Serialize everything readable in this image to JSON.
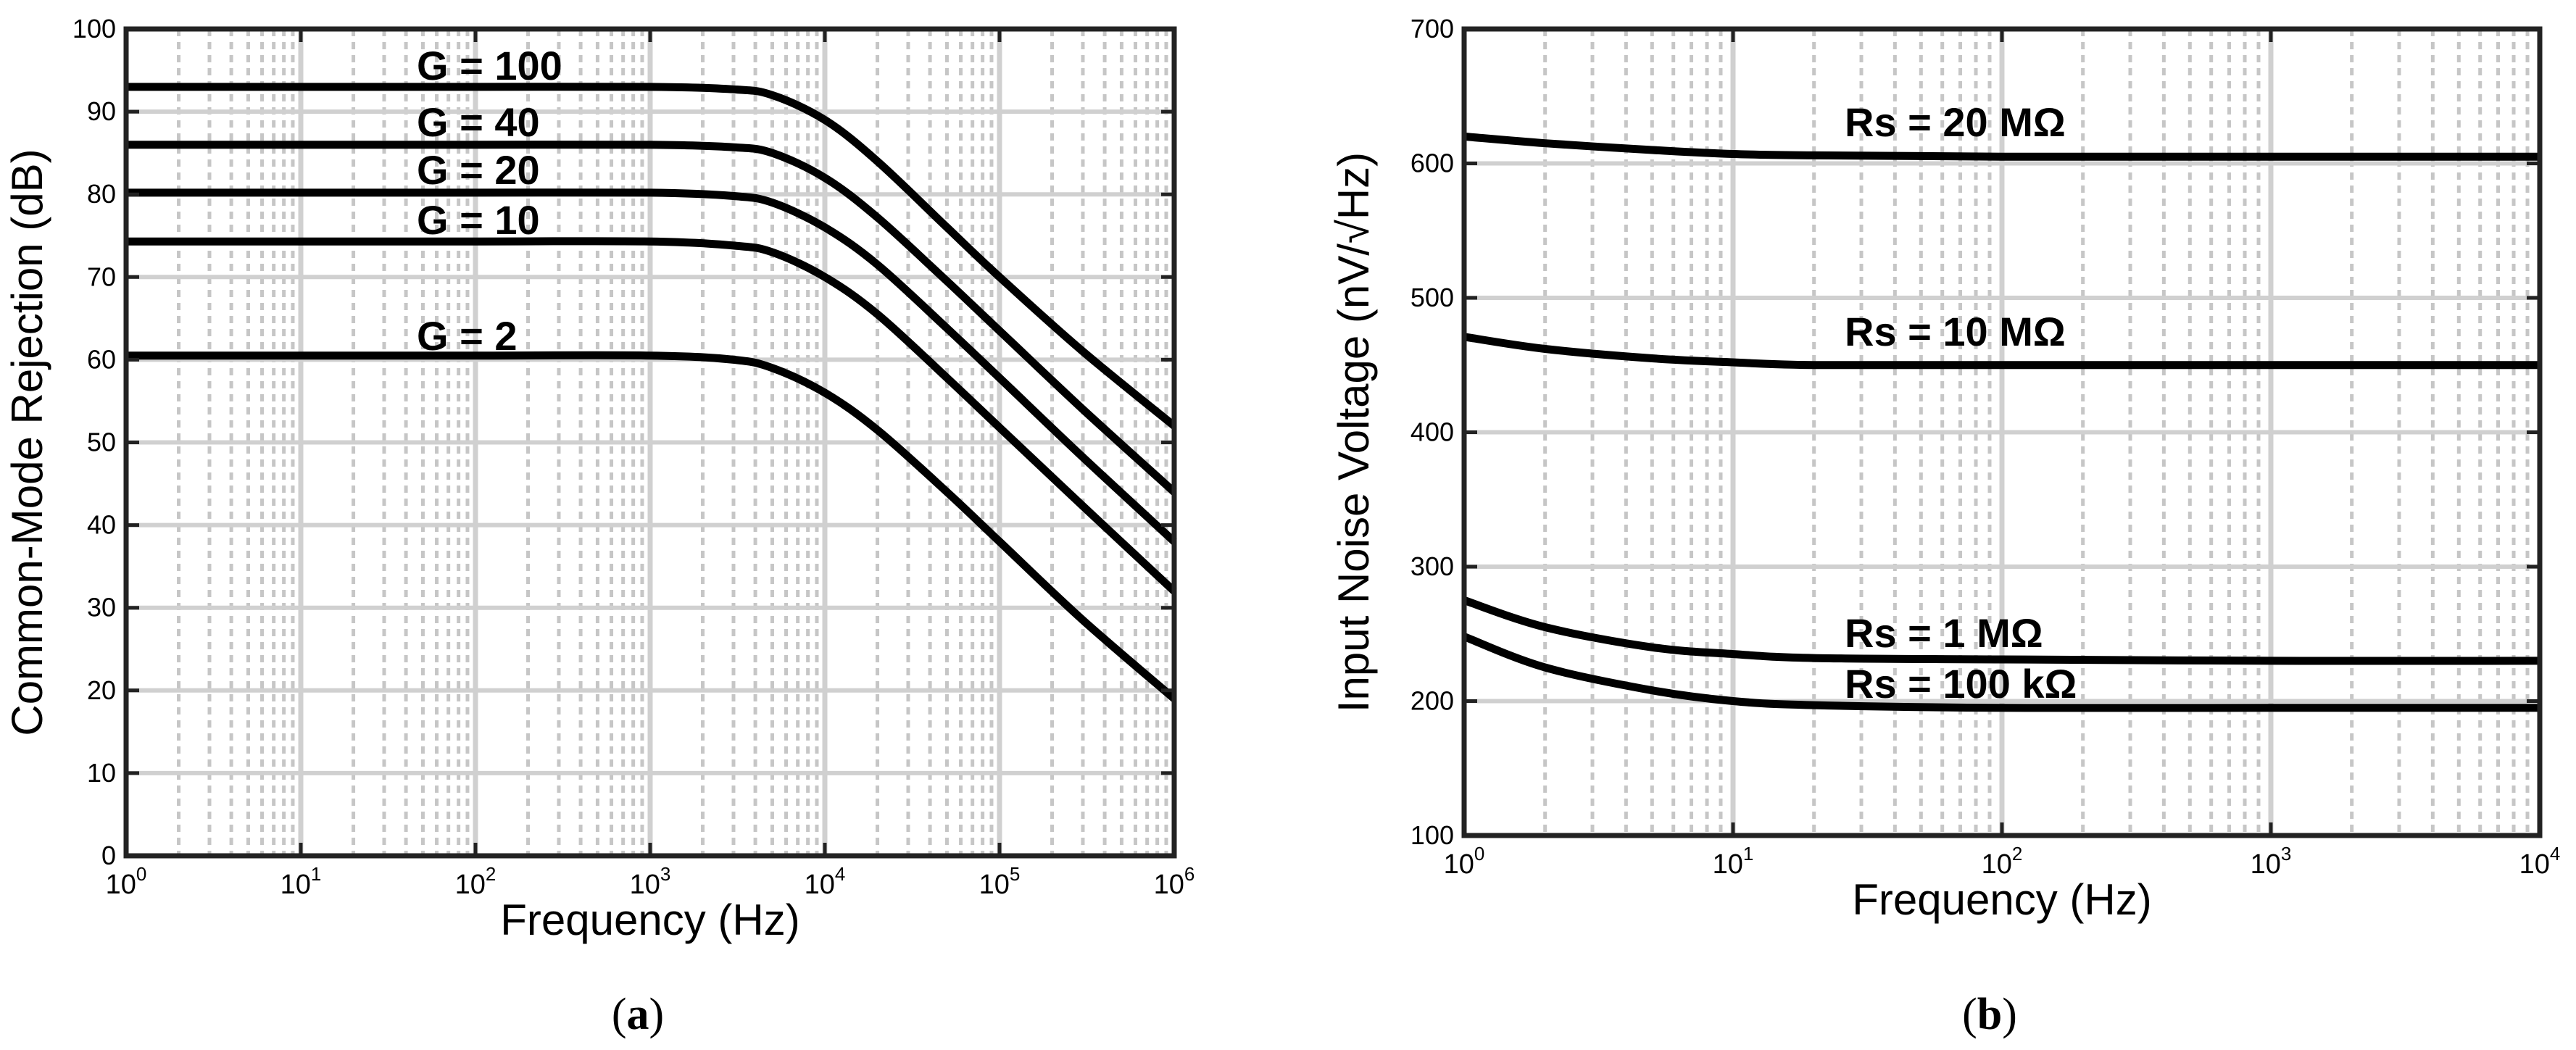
{
  "chart_data": [
    {
      "type": "line",
      "panel_label_open": "(",
      "panel_label_letter": "a",
      "panel_label_close": ")",
      "xlabel": "Frequency (Hz)",
      "ylabel": "Common-Mode Rejection (dB)",
      "xscale": "log",
      "xlim": [
        1,
        1000000
      ],
      "ylim": [
        0,
        100
      ],
      "grid": true,
      "xticks": [
        {
          "base": "10",
          "exp": "0"
        },
        {
          "base": "10",
          "exp": "1"
        },
        {
          "base": "10",
          "exp": "2"
        },
        {
          "base": "10",
          "exp": "3"
        },
        {
          "base": "10",
          "exp": "4"
        },
        {
          "base": "10",
          "exp": "5"
        },
        {
          "base": "10",
          "exp": "6"
        }
      ],
      "yticks": [
        "0",
        "10",
        "20",
        "30",
        "40",
        "50",
        "60",
        "70",
        "80",
        "90",
        "100"
      ],
      "series": [
        {
          "name": "G = 100",
          "x": [
            1,
            10,
            100,
            1000,
            3000,
            5000,
            10000,
            20000,
            50000,
            100000,
            300000,
            1000000
          ],
          "values": [
            93,
            93,
            93,
            93,
            92.7,
            92,
            89,
            84,
            76,
            70,
            61,
            52
          ]
        },
        {
          "name": "G = 40",
          "x": [
            1,
            10,
            100,
            1000,
            3000,
            5000,
            10000,
            20000,
            50000,
            100000,
            300000,
            1000000
          ],
          "values": [
            86,
            86,
            86,
            86,
            85.7,
            85,
            82,
            77.2,
            69.5,
            63.5,
            54,
            44
          ]
        },
        {
          "name": "G = 20",
          "x": [
            1,
            10,
            100,
            1000,
            3000,
            5000,
            10000,
            20000,
            50000,
            100000,
            300000,
            1000000
          ],
          "values": [
            80.2,
            80.2,
            80.2,
            80.2,
            79.8,
            79,
            76,
            71.5,
            63.8,
            57.8,
            48.2,
            38
          ]
        },
        {
          "name": "G = 10",
          "x": [
            1,
            10,
            100,
            1000,
            3000,
            5000,
            10000,
            20000,
            50000,
            100000,
            300000,
            1000000
          ],
          "values": [
            74.3,
            74.3,
            74.3,
            74.3,
            73.8,
            73,
            70,
            65.5,
            57.8,
            51.8,
            42.3,
            32
          ]
        },
        {
          "name": "G = 2",
          "x": [
            1,
            10,
            100,
            1000,
            3000,
            5000,
            10000,
            20000,
            50000,
            100000,
            300000,
            1000000
          ],
          "values": [
            60.5,
            60.5,
            60.5,
            60.5,
            60,
            59,
            56,
            51.5,
            44,
            38,
            28.5,
            19
          ]
        }
      ]
    },
    {
      "type": "line",
      "panel_label_open": "(",
      "panel_label_letter": "b",
      "panel_label_close": ")",
      "xlabel": "Frequency (Hz)",
      "ylabel": "Input Noise Voltage (nV/√Hz)",
      "xscale": "log",
      "xlim": [
        1,
        10000
      ],
      "ylim": [
        100,
        700
      ],
      "grid": true,
      "xticks": [
        {
          "base": "10",
          "exp": "0"
        },
        {
          "base": "10",
          "exp": "1"
        },
        {
          "base": "10",
          "exp": "2"
        },
        {
          "base": "10",
          "exp": "3"
        },
        {
          "base": "10",
          "exp": "4"
        }
      ],
      "yticks": [
        "100",
        "200",
        "300",
        "400",
        "500",
        "600",
        "700"
      ],
      "series": [
        {
          "name": "Rs = 20 MΩ",
          "x": [
            1,
            2,
            5,
            10,
            20,
            100,
            1000,
            10000
          ],
          "values": [
            620,
            615,
            610,
            607,
            606,
            605,
            605,
            605
          ]
        },
        {
          "name": "Rs = 10 MΩ",
          "x": [
            1,
            2,
            5,
            10,
            20,
            100,
            1000,
            10000
          ],
          "values": [
            471,
            462,
            455,
            452,
            450,
            450,
            450,
            450
          ]
        },
        {
          "name": "Rs = 1 MΩ",
          "x": [
            1,
            2,
            5,
            10,
            20,
            100,
            1000,
            10000
          ],
          "values": [
            275,
            255,
            240,
            235,
            232,
            231,
            230,
            230
          ]
        },
        {
          "name": "Rs = 100 kΩ",
          "x": [
            1,
            2,
            5,
            10,
            20,
            100,
            1000,
            10000
          ],
          "values": [
            248,
            225,
            208,
            200,
            197,
            195,
            195,
            195
          ]
        }
      ]
    }
  ]
}
